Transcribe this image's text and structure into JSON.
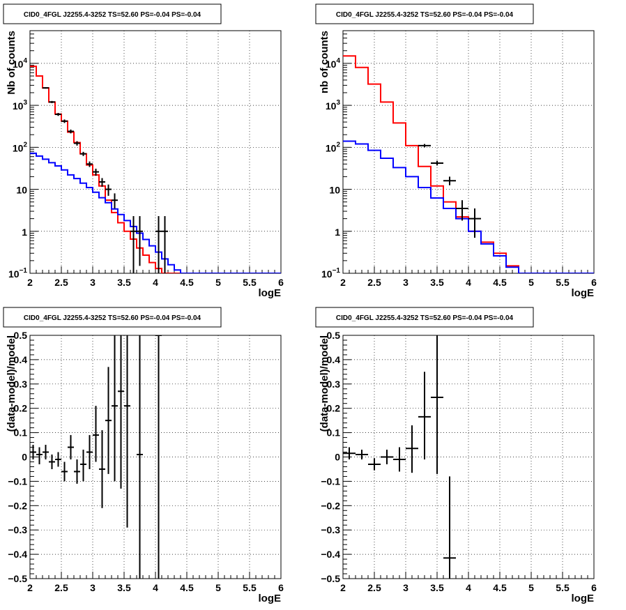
{
  "chart_data": [
    {
      "type": "line",
      "title": "CID0_4FGL J2255.4-3252 TS=52.60 PS=-0.04 PS=-0.04",
      "xlabel": "logE",
      "ylabel": "Nb of counts",
      "xlim": [
        2,
        6
      ],
      "ylim": [
        0.1,
        60000
      ],
      "yscale": "log",
      "grid": true,
      "x_ticks": [
        "2",
        "2.5",
        "3",
        "3.5",
        "4",
        "4.5",
        "5",
        "5.5",
        "6"
      ],
      "y_ticks": [
        {
          "v": 0.1,
          "base": "10",
          "exp": "−1"
        },
        {
          "v": 1,
          "base": "1",
          "exp": ""
        },
        {
          "v": 10,
          "base": "10",
          "exp": ""
        },
        {
          "v": 100,
          "base": "10",
          "exp": "2"
        },
        {
          "v": 1000,
          "base": "10",
          "exp": "3"
        },
        {
          "v": 10000,
          "base": "10",
          "exp": "4"
        }
      ],
      "bin_edges": [
        2.0,
        2.1,
        2.2,
        2.3,
        2.4,
        2.5,
        2.6,
        2.7,
        2.8,
        2.9,
        3.0,
        3.1,
        3.2,
        3.3,
        3.4,
        3.5,
        3.6,
        3.7,
        3.8,
        3.9,
        4.0,
        4.1,
        4.2,
        4.3,
        4.4,
        4.5,
        4.6,
        4.7,
        4.8,
        4.9,
        5.0,
        5.1,
        5.2,
        5.3,
        5.4,
        5.5,
        5.6,
        5.7,
        5.8,
        5.9,
        6.0
      ],
      "series": [
        {
          "color": "#ff0000",
          "style": "step",
          "values": [
            8500,
            5000,
            2600,
            1200,
            620,
            420,
            230,
            130,
            70,
            38,
            22,
            12,
            5.5,
            2.8,
            1.6,
            1.0,
            0.65,
            0.4,
            0.27,
            0.18,
            0.13,
            0.1,
            0.1,
            0.1,
            0.1,
            0.1,
            0.1,
            0.1,
            0.1,
            0.1,
            0.1,
            0.1,
            0.1,
            0.1,
            0.1,
            0.1,
            0.1,
            0.1,
            0.1,
            0.1
          ]
        },
        {
          "color": "#0000ff",
          "style": "step",
          "values": [
            72,
            62,
            52,
            43,
            36,
            29,
            22,
            18,
            14,
            11,
            8.5,
            6.3,
            4.8,
            3.4,
            2.5,
            1.8,
            1.3,
            0.9,
            0.64,
            0.45,
            0.32,
            0.22,
            0.16,
            0.12,
            0.1,
            0.1,
            0.1,
            0.1,
            0.1,
            0.1,
            0.1,
            0.1,
            0.1,
            0.1,
            0.1,
            0.1,
            0.1,
            0.1,
            0.1,
            0.1
          ]
        },
        {
          "color": "#000000",
          "style": "errorbar",
          "points": [
            {
              "x": 2.25,
              "y": 2600,
              "lo": 2500,
              "hi": 2700
            },
            {
              "x": 2.35,
              "y": 1200,
              "lo": 1130,
              "hi": 1270
            },
            {
              "x": 2.45,
              "y": 610,
              "lo": 560,
              "hi": 660
            },
            {
              "x": 2.55,
              "y": 420,
              "lo": 380,
              "hi": 460
            },
            {
              "x": 2.65,
              "y": 240,
              "lo": 215,
              "hi": 265
            },
            {
              "x": 2.75,
              "y": 125,
              "lo": 110,
              "hi": 140
            },
            {
              "x": 2.85,
              "y": 70,
              "lo": 62,
              "hi": 78
            },
            {
              "x": 2.95,
              "y": 40,
              "lo": 34,
              "hi": 46
            },
            {
              "x": 3.05,
              "y": 26,
              "lo": 21,
              "hi": 31
            },
            {
              "x": 3.15,
              "y": 15,
              "lo": 11.5,
              "hi": 18.5
            },
            {
              "x": 3.25,
              "y": 10,
              "lo": 7,
              "hi": 13
            },
            {
              "x": 3.35,
              "y": 5.5,
              "lo": 3.5,
              "hi": 8
            },
            {
              "x": 3.65,
              "y": 1,
              "lo": 0.1,
              "hi": 2.3
            },
            {
              "x": 3.75,
              "y": 1,
              "lo": 0.15,
              "hi": 2.3
            },
            {
              "x": 4.05,
              "y": 1,
              "lo": 0.1,
              "hi": 2.3
            },
            {
              "x": 4.15,
              "y": 1,
              "lo": 0.1,
              "hi": 2.3
            }
          ]
        }
      ]
    },
    {
      "type": "line",
      "title": "CID0_4FGL J2255.4-3252 TS=52.60 PS=-0.04 PS=-0.04",
      "xlabel": "logE",
      "ylabel": "nb of counts",
      "xlim": [
        2,
        6
      ],
      "ylim": [
        0.1,
        60000
      ],
      "yscale": "log",
      "grid": true,
      "x_ticks": [
        "2",
        "2.5",
        "3",
        "3.5",
        "4",
        "4.5",
        "5",
        "5.5",
        "6"
      ],
      "y_ticks": [
        {
          "v": 0.1,
          "base": "10",
          "exp": "−1"
        },
        {
          "v": 1,
          "base": "1",
          "exp": ""
        },
        {
          "v": 10,
          "base": "10",
          "exp": ""
        },
        {
          "v": 100,
          "base": "10",
          "exp": "2"
        },
        {
          "v": 1000,
          "base": "10",
          "exp": "3"
        },
        {
          "v": 10000,
          "base": "10",
          "exp": "4"
        }
      ],
      "bin_edges": [
        2.0,
        2.2,
        2.4,
        2.6,
        2.8,
        3.0,
        3.2,
        3.4,
        3.6,
        3.8,
        4.0,
        4.2,
        4.4,
        4.6,
        4.8,
        5.0,
        5.2,
        5.4,
        5.6,
        5.8,
        6.0
      ],
      "series": [
        {
          "color": "#ff0000",
          "style": "step",
          "values": [
            15000,
            8000,
            3200,
            1200,
            380,
            110,
            35,
            12,
            5.0,
            2.2,
            1.0,
            0.55,
            0.3,
            0.15,
            0.1,
            0.1,
            0.1,
            0.1,
            0.1,
            0.1
          ]
        },
        {
          "color": "#0000ff",
          "style": "step",
          "values": [
            140,
            120,
            85,
            55,
            33,
            20,
            11,
            6.2,
            3.5,
            2.0,
            1.0,
            0.5,
            0.26,
            0.14,
            0.1,
            0.1,
            0.1,
            0.1,
            0.1,
            0.1
          ]
        },
        {
          "color": "#000000",
          "style": "errorbar",
          "points": [
            {
              "x": 3.3,
              "y": 110,
              "lo": 100,
              "hi": 120
            },
            {
              "x": 3.5,
              "y": 42,
              "lo": 37,
              "hi": 48
            },
            {
              "x": 3.7,
              "y": 16,
              "lo": 12.5,
              "hi": 20
            },
            {
              "x": 3.9,
              "y": 3.5,
              "lo": 1.8,
              "hi": 5.5
            },
            {
              "x": 4.1,
              "y": 2,
              "lo": 0.7,
              "hi": 3.5
            }
          ]
        }
      ]
    },
    {
      "type": "scatter",
      "title": "CID0_4FGL J2255.4-3252 TS=52.60 PS=-0.04 PS=-0.04",
      "xlabel": "logE",
      "ylabel": "(data-model)/model",
      "xlim": [
        2,
        6
      ],
      "ylim": [
        -0.5,
        0.5
      ],
      "grid": true,
      "x_ticks": [
        "2",
        "2.5",
        "3",
        "3.5",
        "4",
        "4.5",
        "5",
        "5.5",
        "6"
      ],
      "y_ticks": [
        "−0.5",
        "−0.4",
        "−0.3",
        "−0.2",
        "−0.1",
        "0",
        "0.1",
        "0.2",
        "0.3",
        "0.4",
        "0.5"
      ],
      "bin_halfwidth": 0.05,
      "points": [
        {
          "x": 2.05,
          "y": 0.02,
          "lo": -0.01,
          "hi": 0.05
        },
        {
          "x": 2.15,
          "y": 0.01,
          "lo": -0.03,
          "hi": 0.04
        },
        {
          "x": 2.25,
          "y": 0.02,
          "lo": -0.01,
          "hi": 0.05
        },
        {
          "x": 2.35,
          "y": -0.02,
          "lo": -0.05,
          "hi": 0.01
        },
        {
          "x": 2.45,
          "y": -0.01,
          "lo": -0.04,
          "hi": 0.02
        },
        {
          "x": 2.55,
          "y": -0.06,
          "lo": -0.1,
          "hi": -0.02
        },
        {
          "x": 2.65,
          "y": 0.04,
          "lo": -0.01,
          "hi": 0.09
        },
        {
          "x": 2.75,
          "y": -0.06,
          "lo": -0.11,
          "hi": -0.01
        },
        {
          "x": 2.85,
          "y": -0.03,
          "lo": -0.1,
          "hi": 0.03
        },
        {
          "x": 2.95,
          "y": 0.02,
          "lo": -0.05,
          "hi": 0.09
        },
        {
          "x": 3.05,
          "y": 0.09,
          "lo": -0.02,
          "hi": 0.21
        },
        {
          "x": 3.15,
          "y": -0.05,
          "lo": -0.21,
          "hi": 0.11
        },
        {
          "x": 3.25,
          "y": 0.15,
          "lo": -0.07,
          "hi": 0.37
        },
        {
          "x": 3.35,
          "y": 0.21,
          "lo": -0.1,
          "hi": 0.5
        },
        {
          "x": 3.45,
          "y": 0.27,
          "lo": -0.13,
          "hi": 0.5
        },
        {
          "x": 3.55,
          "y": 0.21,
          "lo": -0.29,
          "hi": 0.5
        },
        {
          "x": 3.75,
          "y": 0.01,
          "lo": -0.5,
          "hi": 0.5
        },
        {
          "x": 4.05,
          "y": 0.5,
          "lo": -0.5,
          "hi": 0.5
        }
      ]
    },
    {
      "type": "scatter",
      "title": "CID0_4FGL J2255.4-3252 TS=52.60 PS=-0.04 PS=-0.04",
      "xlabel": "logE",
      "ylabel": "(data-model)/model",
      "xlim": [
        2,
        6
      ],
      "ylim": [
        -0.5,
        0.5
      ],
      "grid": true,
      "x_ticks": [
        "2",
        "2.5",
        "3",
        "3.5",
        "4",
        "4.5",
        "5",
        "5.5",
        "6"
      ],
      "y_ticks": [
        "−0.5",
        "−0.4",
        "−0.3",
        "−0.2",
        "−0.1",
        "0",
        "0.1",
        "0.2",
        "0.3",
        "0.4",
        "0.5"
      ],
      "bin_halfwidth": 0.1,
      "points": [
        {
          "x": 2.1,
          "y": 0.015,
          "lo": -0.01,
          "hi": 0.04
        },
        {
          "x": 2.3,
          "y": 0.01,
          "lo": -0.01,
          "hi": 0.03
        },
        {
          "x": 2.5,
          "y": -0.03,
          "lo": -0.055,
          "hi": -0.005
        },
        {
          "x": 2.7,
          "y": 0.0,
          "lo": -0.03,
          "hi": 0.03
        },
        {
          "x": 2.9,
          "y": -0.01,
          "lo": -0.06,
          "hi": 0.04
        },
        {
          "x": 3.1,
          "y": 0.035,
          "lo": -0.065,
          "hi": 0.13
        },
        {
          "x": 3.3,
          "y": 0.165,
          "lo": -0.01,
          "hi": 0.35
        },
        {
          "x": 3.5,
          "y": 0.245,
          "lo": -0.07,
          "hi": 0.5
        },
        {
          "x": 3.7,
          "y": -0.415,
          "lo": -0.5,
          "hi": -0.08
        }
      ]
    }
  ]
}
